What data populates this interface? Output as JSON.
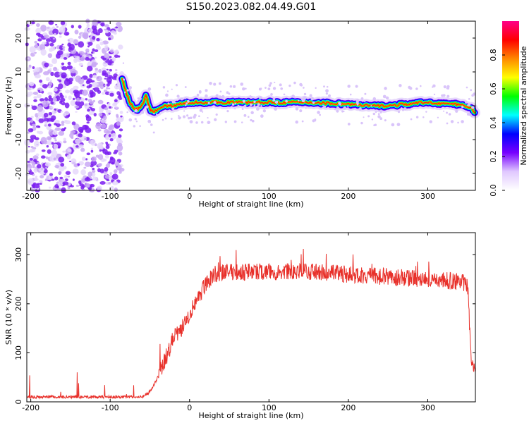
{
  "title": "S150.2023.082.04.49.G01",
  "chart_data": [
    {
      "type": "heatmap",
      "xlabel": "Height of straight line (km)",
      "ylabel": "Frequency (Hz)",
      "xlim": [
        -205,
        360
      ],
      "ylim": [
        -25,
        25
      ],
      "xticks": [
        -200,
        -100,
        0,
        100,
        200,
        300
      ],
      "yticks": [
        -20,
        -10,
        0,
        10,
        20
      ],
      "colorbar": {
        "label": "Normalized spectral amplitude",
        "range": [
          0,
          1
        ],
        "ticks": [
          0.0,
          0.2,
          0.4,
          0.6,
          0.8
        ],
        "colors": [
          "#ffffff",
          "#e0c8ff",
          "#7700ff",
          "#0000ff",
          "#00ffff",
          "#00ff00",
          "#ffff00",
          "#ff8800",
          "#ff0000",
          "#ff0088"
        ]
      },
      "noise_region": [
        -205,
        -85
      ],
      "ridge": {
        "x": [
          -85,
          -80,
          -75,
          -70,
          -65,
          -60,
          -55,
          -50,
          -45,
          -40,
          -35,
          -30,
          -25,
          -20,
          0,
          50,
          100,
          150,
          200,
          220,
          250,
          300,
          330,
          350,
          360
        ],
        "y": [
          8,
          4,
          1,
          -1,
          -1,
          0,
          3,
          -1,
          -2,
          -1,
          -0.5,
          0,
          0,
          0,
          1,
          1,
          1,
          1,
          0.5,
          0,
          0,
          1,
          0.5,
          0,
          -2
        ]
      }
    },
    {
      "type": "line",
      "xlabel": "Height of straight line (km)",
      "ylabel": "SNR (10 * v/v)",
      "xlim": [
        -205,
        360
      ],
      "ylim": [
        0,
        345
      ],
      "xticks": [
        -200,
        -100,
        0,
        100,
        200,
        300
      ],
      "yticks": [
        0,
        100,
        200,
        300
      ],
      "color": "#e8302a",
      "x": [
        -205,
        -150,
        -100,
        -60,
        -50,
        -40,
        -30,
        -20,
        -10,
        0,
        10,
        20,
        30,
        50,
        100,
        150,
        200,
        250,
        300,
        340,
        350,
        355,
        360
      ],
      "y": [
        10,
        10,
        10,
        10,
        20,
        50,
        90,
        130,
        150,
        180,
        210,
        240,
        260,
        265,
        265,
        265,
        260,
        255,
        250,
        245,
        240,
        80,
        70
      ]
    }
  ]
}
